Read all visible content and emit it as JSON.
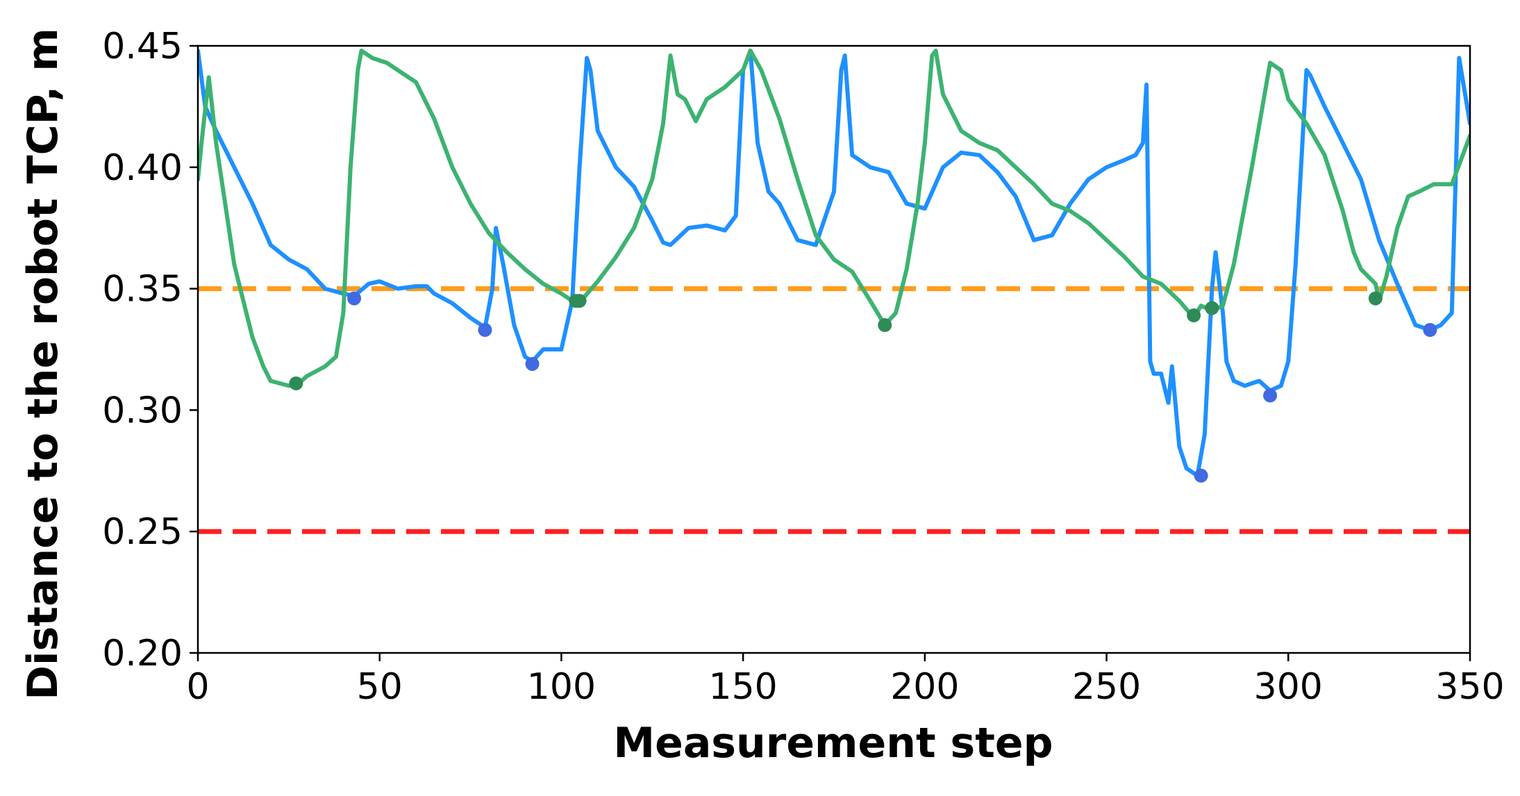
{
  "chart_data": {
    "type": "line",
    "title": "",
    "xlabel": "Measurement step",
    "ylabel": "Distance to the robot TCP, m",
    "xlim": [
      0,
      350
    ],
    "ylim": [
      0.2,
      0.45
    ],
    "xticks": [
      0,
      50,
      100,
      150,
      200,
      250,
      300,
      350
    ],
    "yticks": [
      "0.20",
      "0.25",
      "0.30",
      "0.35",
      "0.40",
      "0.45"
    ],
    "grid": false,
    "legend": "none",
    "series": [
      {
        "color": "#1e90ff",
        "x": [
          0,
          2,
          5,
          10,
          15,
          20,
          25,
          30,
          35,
          40,
          43,
          47,
          50,
          55,
          60,
          63,
          65,
          70,
          75,
          79,
          81,
          82,
          84,
          87,
          90,
          92,
          95,
          100,
          103,
          105,
          107,
          108,
          110,
          115,
          120,
          125,
          128,
          130,
          135,
          140,
          145,
          148,
          150,
          152,
          154,
          157,
          160,
          165,
          170,
          175,
          177,
          178,
          180,
          185,
          190,
          195,
          200,
          205,
          210,
          215,
          220,
          225,
          230,
          235,
          240,
          245,
          250,
          255,
          258,
          260,
          261,
          262,
          263,
          265,
          267,
          268,
          269,
          270,
          272,
          275,
          277,
          279,
          280,
          282,
          283,
          285,
          288,
          292,
          295,
          298,
          300,
          302,
          305,
          306,
          310,
          315,
          320,
          325,
          330,
          335,
          339,
          342,
          345,
          347,
          350
        ],
        "y": [
          0.448,
          0.425,
          0.415,
          0.4,
          0.385,
          0.368,
          0.362,
          0.358,
          0.35,
          0.348,
          0.347,
          0.352,
          0.353,
          0.35,
          0.351,
          0.351,
          0.348,
          0.344,
          0.338,
          0.334,
          0.35,
          0.375,
          0.36,
          0.335,
          0.322,
          0.32,
          0.325,
          0.325,
          0.345,
          0.4,
          0.445,
          0.44,
          0.415,
          0.4,
          0.392,
          0.378,
          0.369,
          0.368,
          0.375,
          0.376,
          0.374,
          0.38,
          0.44,
          0.448,
          0.41,
          0.39,
          0.385,
          0.37,
          0.368,
          0.39,
          0.44,
          0.446,
          0.405,
          0.4,
          0.398,
          0.385,
          0.383,
          0.4,
          0.406,
          0.405,
          0.398,
          0.388,
          0.37,
          0.372,
          0.385,
          0.395,
          0.4,
          0.403,
          0.405,
          0.41,
          0.434,
          0.32,
          0.315,
          0.315,
          0.303,
          0.318,
          0.302,
          0.285,
          0.276,
          0.273,
          0.29,
          0.35,
          0.365,
          0.34,
          0.32,
          0.312,
          0.31,
          0.312,
          0.308,
          0.31,
          0.32,
          0.36,
          0.44,
          0.438,
          0.425,
          0.41,
          0.395,
          0.37,
          0.352,
          0.335,
          0.333,
          0.335,
          0.34,
          0.445,
          0.418
        ]
      },
      {
        "color": "#3cb371",
        "x": [
          0,
          1,
          3,
          5,
          8,
          10,
          15,
          18,
          20,
          25,
          27,
          30,
          35,
          38,
          40,
          42,
          44,
          45,
          48,
          52,
          55,
          60,
          65,
          70,
          75,
          80,
          85,
          90,
          95,
          100,
          103,
          106,
          110,
          115,
          120,
          125,
          128,
          130,
          132,
          134,
          137,
          140,
          145,
          150,
          152,
          155,
          160,
          165,
          170,
          175,
          180,
          185,
          189,
          192,
          195,
          198,
          200,
          202,
          203,
          205,
          210,
          215,
          220,
          225,
          230,
          235,
          240,
          245,
          250,
          255,
          260,
          265,
          270,
          274,
          276,
          279,
          282,
          285,
          290,
          295,
          298,
          300,
          305,
          310,
          315,
          318,
          320,
          324,
          325,
          327,
          330,
          333,
          336,
          340,
          345,
          350
        ],
        "y": [
          0.395,
          0.41,
          0.437,
          0.41,
          0.38,
          0.36,
          0.33,
          0.318,
          0.312,
          0.31,
          0.31,
          0.314,
          0.318,
          0.322,
          0.34,
          0.4,
          0.44,
          0.448,
          0.445,
          0.443,
          0.44,
          0.435,
          0.42,
          0.4,
          0.385,
          0.373,
          0.365,
          0.358,
          0.352,
          0.348,
          0.345,
          0.346,
          0.353,
          0.363,
          0.375,
          0.395,
          0.418,
          0.446,
          0.43,
          0.428,
          0.419,
          0.428,
          0.433,
          0.44,
          0.448,
          0.44,
          0.42,
          0.395,
          0.372,
          0.362,
          0.357,
          0.345,
          0.335,
          0.34,
          0.358,
          0.385,
          0.41,
          0.446,
          0.448,
          0.43,
          0.415,
          0.41,
          0.407,
          0.4,
          0.393,
          0.385,
          0.382,
          0.377,
          0.37,
          0.363,
          0.355,
          0.352,
          0.345,
          0.338,
          0.343,
          0.341,
          0.343,
          0.36,
          0.4,
          0.443,
          0.44,
          0.428,
          0.418,
          0.405,
          0.382,
          0.365,
          0.358,
          0.352,
          0.345,
          0.355,
          0.375,
          0.388,
          0.39,
          0.393,
          0.393,
          0.413
        ]
      }
    ],
    "markers": [
      {
        "color": "#4169e1",
        "x": [
          43,
          79,
          92,
          276,
          295,
          339
        ],
        "y": [
          0.346,
          0.333,
          0.319,
          0.273,
          0.306,
          0.333
        ]
      },
      {
        "color": "#2e8b57",
        "x": [
          27,
          104,
          105,
          189,
          274,
          279,
          324
        ],
        "y": [
          0.311,
          0.345,
          0.345,
          0.335,
          0.339,
          0.342,
          0.346
        ]
      }
    ],
    "reference_lines": [
      {
        "y": 0.35,
        "color": "#ff9b1a",
        "style": "dashed"
      },
      {
        "y": 0.25,
        "color": "#ff2020",
        "style": "dashed"
      }
    ]
  }
}
